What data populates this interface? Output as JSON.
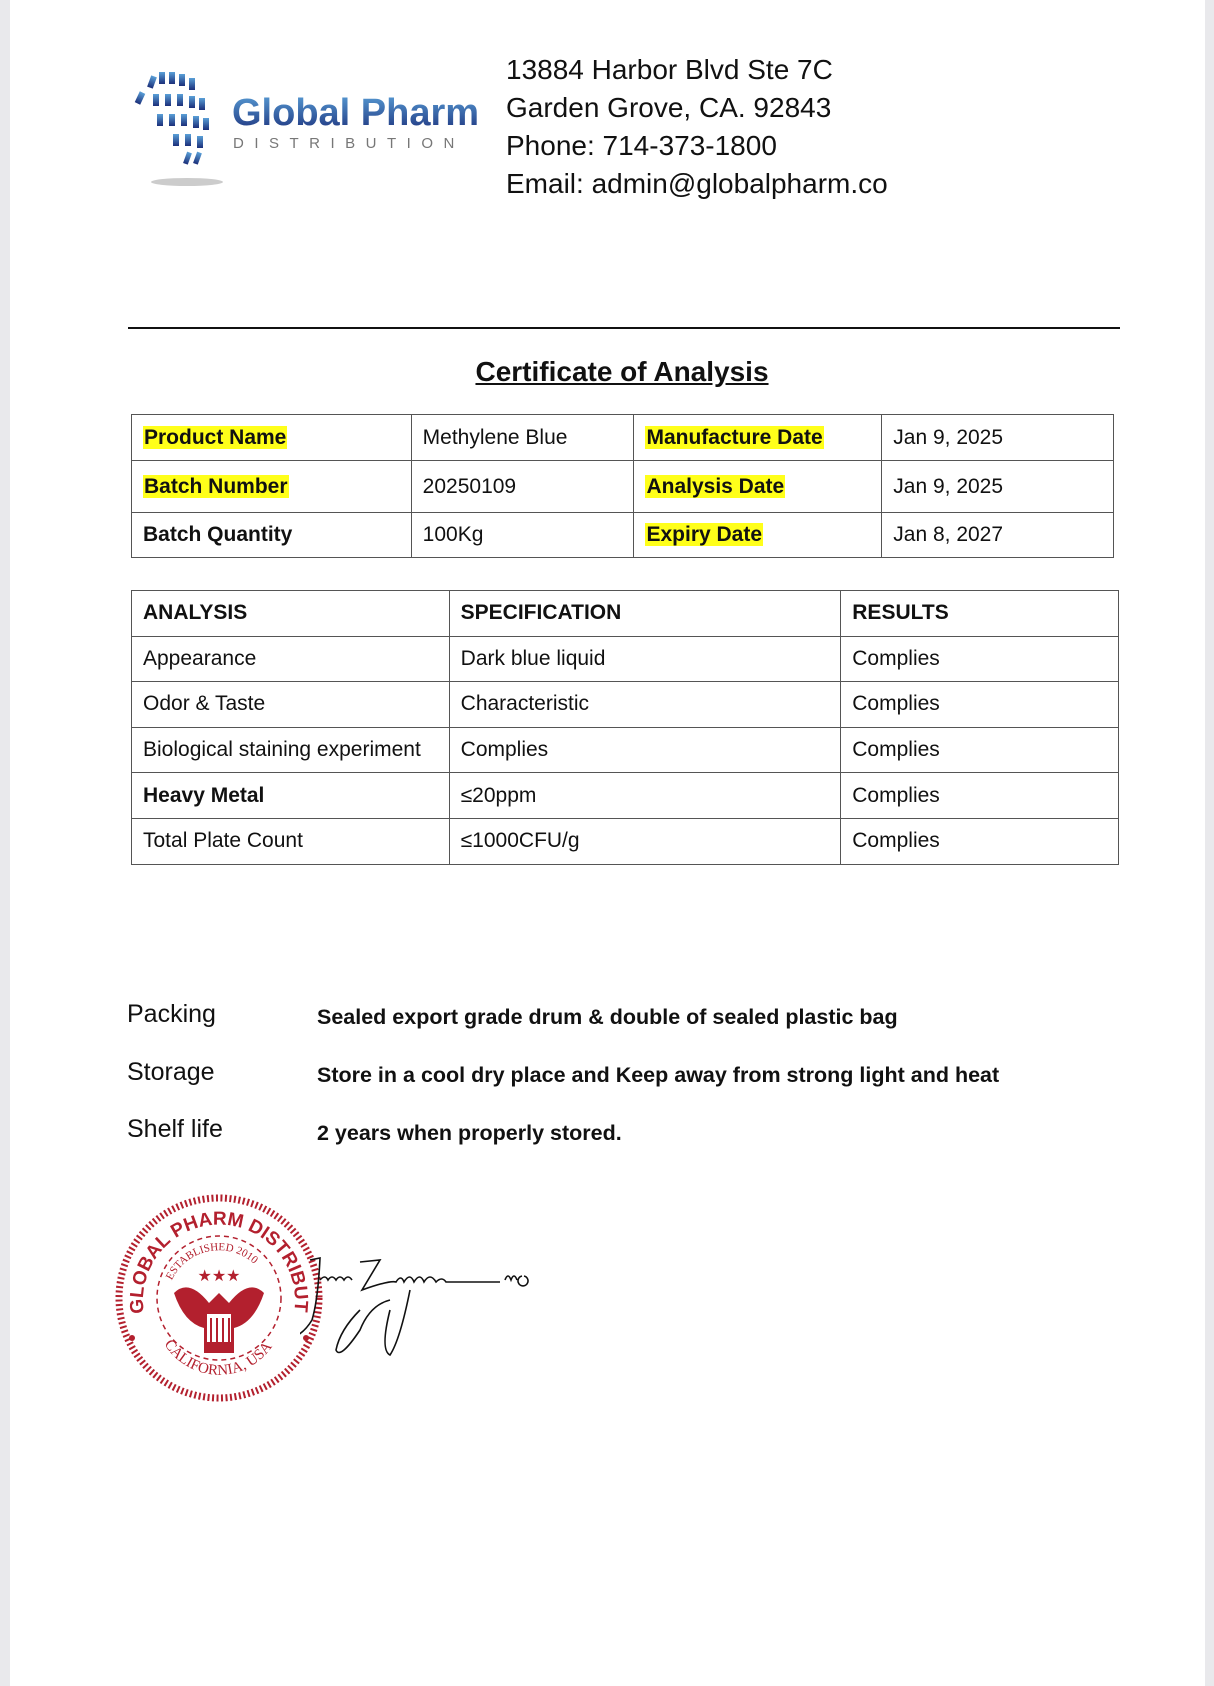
{
  "header": {
    "logo": {
      "name": "Global Pharm",
      "tagline": "DISTRIBUTION"
    },
    "address_lines": [
      "13884 Harbor Blvd Ste 7C",
      "Garden Grove, CA. 92843",
      "Phone: 714-373-1800",
      "Email: admin@globalpharm.co"
    ]
  },
  "title": "Certificate of Analysis",
  "product_table": [
    {
      "label1": "Product Name",
      "value1": "Methylene Blue",
      "label2": "Manufacture Date",
      "value2": "Jan 9, 2025"
    },
    {
      "label1": "Batch Number",
      "value1": "20250109",
      "label2": "Analysis Date",
      "value2": "Jan 9, 2025"
    },
    {
      "label1": "Batch Quantity",
      "value1": "100Kg",
      "label2": "Expiry Date",
      "value2": "Jan 8, 2027"
    }
  ],
  "analysis_table": {
    "headers": [
      "ANALYSIS",
      "SPECIFICATION",
      "RESULTS"
    ],
    "rows": [
      [
        "Appearance",
        "Dark blue liquid",
        "Complies"
      ],
      [
        "Odor & Taste",
        "Characteristic",
        "Complies"
      ],
      [
        "Biological staining experiment",
        "Complies",
        "Complies"
      ],
      [
        "Heavy Metal",
        "≤20ppm",
        "Complies"
      ],
      [
        "Total Plate Count",
        "≤1000CFU/g",
        "Complies"
      ]
    ]
  },
  "details": [
    {
      "label": "Packing",
      "value": "Sealed export grade drum & double of sealed plastic bag"
    },
    {
      "label": "Storage",
      "value": "Store in a cool dry place and Keep away from strong light and heat"
    },
    {
      "label": "Shelf life",
      "value": "2 years when properly stored."
    }
  ],
  "seal": {
    "outer_text": "GLOBAL PHARM DISTRIBUTION",
    "inner_text": "ESTABLISHED 2010",
    "bottom_text": "CALIFORNIA, USA"
  },
  "signature": "Nguyen MD",
  "colors": {
    "highlight": "#ffff1a",
    "seal": "#b3202e",
    "logo_blue": "#1f3c8c"
  }
}
